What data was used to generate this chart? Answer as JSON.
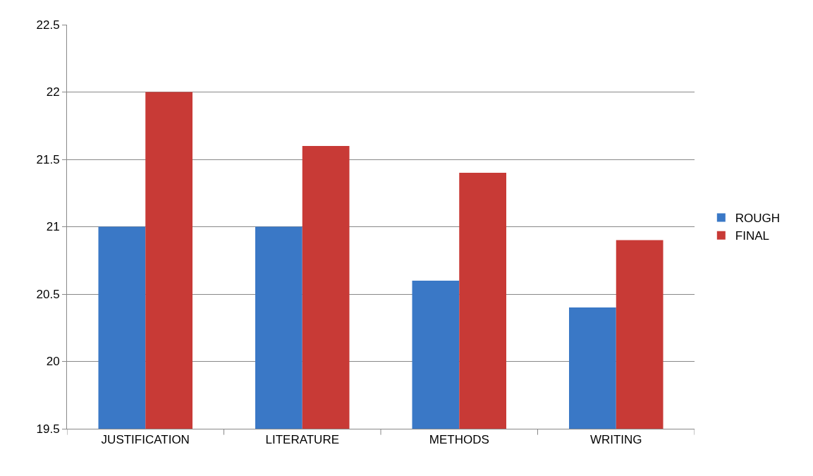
{
  "chart_data": {
    "type": "bar",
    "categories": [
      "JUSTIFICATION",
      "LITERATURE",
      "METHODS",
      "WRITING"
    ],
    "series": [
      {
        "name": "ROUGH",
        "color": "#3a78c6",
        "values": [
          21,
          21,
          20.6,
          20.4
        ]
      },
      {
        "name": "FINAL",
        "color": "#c83a36",
        "values": [
          22,
          21.6,
          21.4,
          20.9
        ]
      }
    ],
    "ylim": [
      19.5,
      22.5
    ],
    "yticks": [
      19.5,
      20,
      20.5,
      21,
      21.5,
      22,
      22.5
    ],
    "grid": "y",
    "legend": "right"
  }
}
